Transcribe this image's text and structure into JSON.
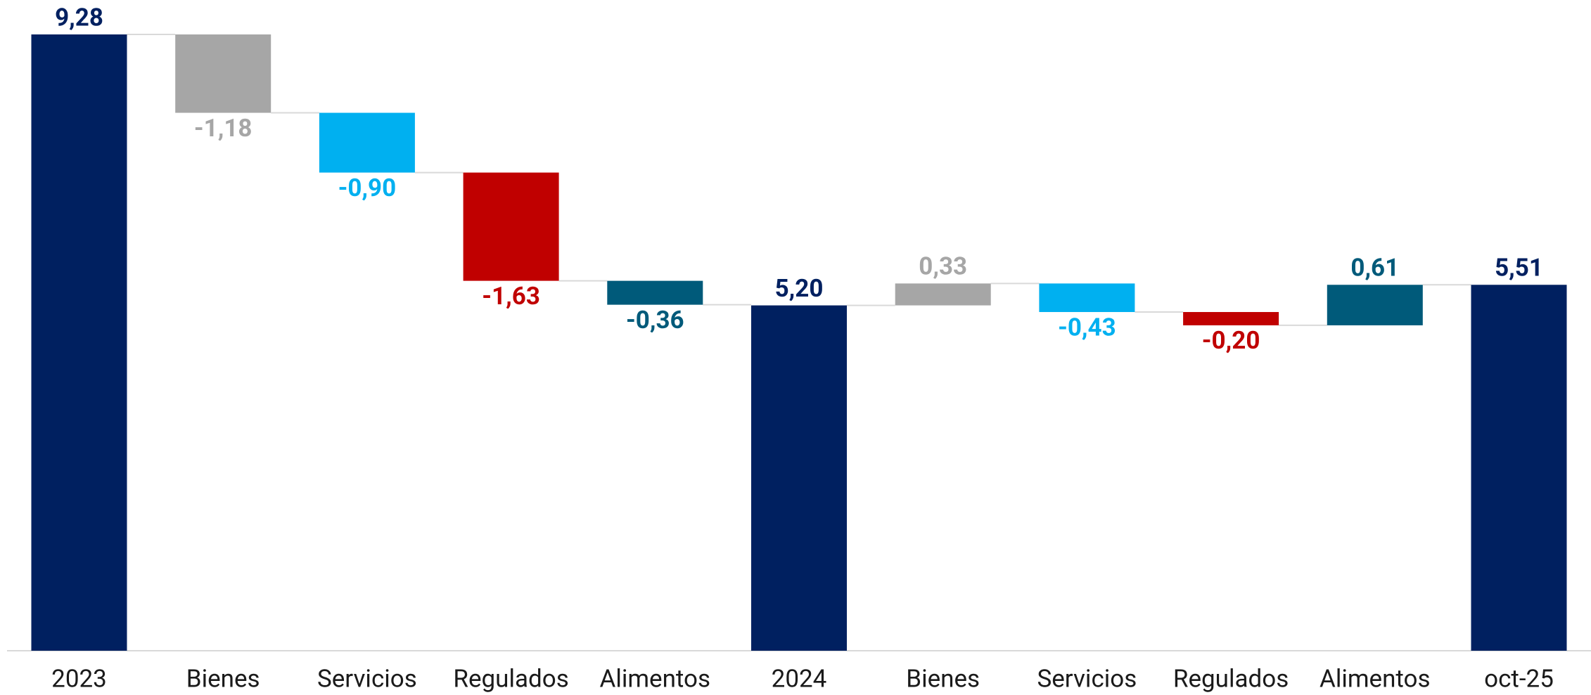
{
  "chart_data": {
    "type": "waterfall",
    "categories": [
      "2023",
      "Bienes",
      "Servicios",
      "Regulados",
      "Alimentos",
      "2024",
      "Bienes",
      "Servicios",
      "Regulados",
      "Alimentos",
      "oct-25"
    ],
    "values": [
      9.28,
      -1.18,
      -0.9,
      -1.63,
      -0.36,
      5.2,
      0.33,
      -0.43,
      -0.2,
      0.61,
      5.51
    ],
    "value_labels": [
      "9,28",
      "-1,18",
      "-0,90",
      "-1,63",
      "-0,36",
      "5,20",
      "0,33",
      "-0,43",
      "-0,20",
      "0,61",
      "5,51"
    ],
    "measure": [
      "total",
      "relative",
      "relative",
      "relative",
      "relative",
      "total",
      "relative",
      "relative",
      "relative",
      "relative",
      "total"
    ],
    "colors": [
      "#002060",
      "#a6a6a6",
      "#00b0f0",
      "#c00000",
      "#005a7a",
      "#002060",
      "#a6a6a6",
      "#00b0f0",
      "#c00000",
      "#005a7a",
      "#002060"
    ]
  }
}
